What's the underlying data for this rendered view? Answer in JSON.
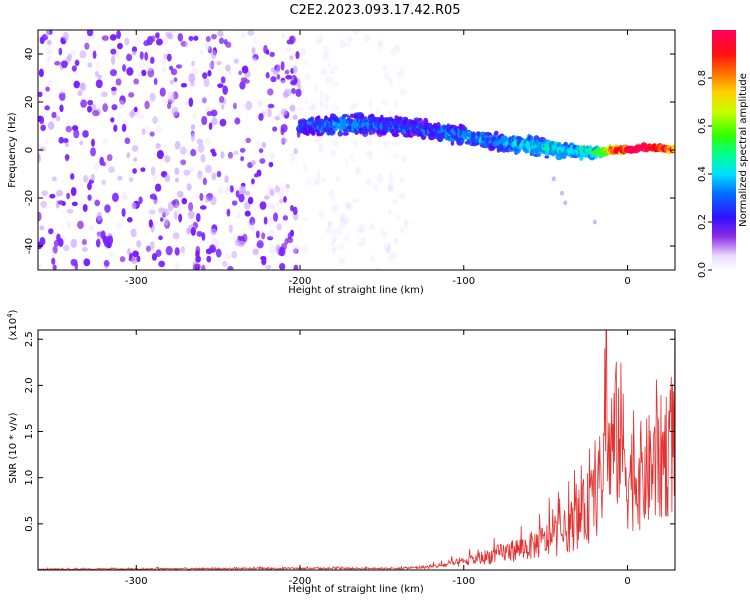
{
  "title": "C2E2.2023.093.17.42.R05",
  "colors": {
    "spectral_scatter": "#7a1fff",
    "snr_line": "#e53030",
    "colormap": [
      "#ffffff",
      "#efe0ff",
      "#c9a3ff",
      "#8a2be2",
      "#5a00ff",
      "#2a30ff",
      "#0090ff",
      "#00e0ff",
      "#00ff80",
      "#40ff00",
      "#c8ff00",
      "#ffd000",
      "#ff6000",
      "#ff0000",
      "#ff0055"
    ]
  },
  "chart_data": [
    {
      "type": "heatmap",
      "name": "spectrogram",
      "xlabel": "Height of straight line (km)",
      "ylabel": "Frequency (Hz)",
      "xlim": [
        -360,
        29
      ],
      "ylim": [
        -50,
        50
      ],
      "xticks": [
        -300,
        -200,
        -100,
        0
      ],
      "yticks": [
        -40,
        -20,
        0,
        20,
        40
      ],
      "x_tick_labels": [
        "-300",
        "-200",
        "-100",
        "0"
      ],
      "y_tick_labels": [
        "-40",
        "-20",
        "0",
        "20",
        "40"
      ],
      "colorbar": {
        "label": "Normalized spectral amplitude",
        "range": [
          0.0,
          1.0
        ],
        "ticks": [
          0.0,
          0.2,
          0.4,
          0.6,
          0.8
        ],
        "tick_labels": [
          "0.0",
          "0.2",
          "0.4",
          "0.6",
          "0.8"
        ]
      },
      "ridge": {
        "x": [
          -200,
          -170,
          -140,
          -120,
          -100,
          -80,
          -60,
          -40,
          -20,
          -10,
          0,
          10,
          20,
          29
        ],
        "frequency": [
          10,
          11,
          10,
          8,
          6,
          3,
          2,
          0,
          -1,
          0,
          0,
          1,
          1,
          0
        ],
        "width_hz": [
          8,
          9,
          9,
          8,
          8,
          8,
          8,
          7,
          5,
          3,
          2,
          2,
          2,
          2
        ],
        "amplitude": [
          0.3,
          0.35,
          0.3,
          0.3,
          0.35,
          0.35,
          0.4,
          0.4,
          0.45,
          0.7,
          0.9,
          0.9,
          0.8,
          0.75
        ]
      },
      "noise_regions": [
        {
          "x_range": [
            -360,
            -200
          ],
          "amplitude": 0.22,
          "note": "dense broadband noise"
        },
        {
          "x_range": [
            -200,
            -135
          ],
          "amplitude": 0.06,
          "note": "sparse faint noise"
        }
      ]
    },
    {
      "type": "line",
      "name": "snr",
      "xlabel": "Height of straight line (km)",
      "ylabel": "SNR (10 * v/v)",
      "ylabel_multiplier": "(x10",
      "ylabel_multiplier_exp": "4",
      "ylabel_multiplier_close": ")",
      "xlim": [
        -360,
        29
      ],
      "ylim": [
        0,
        2.6
      ],
      "xticks": [
        -300,
        -200,
        -100,
        0
      ],
      "yticks": [
        0.5,
        1.0,
        1.5,
        2.0,
        2.5
      ],
      "x_tick_labels": [
        "-300",
        "-200",
        "-100",
        "0"
      ],
      "y_tick_labels": [
        "0.5",
        "1.0",
        "1.5",
        "2.0",
        "2.5"
      ],
      "envelope": {
        "x": [
          -360,
          -200,
          -140,
          -120,
          -100,
          -80,
          -60,
          -40,
          -30,
          -20,
          -12,
          -5,
          0,
          10,
          20,
          29
        ],
        "snr": [
          0.01,
          0.02,
          0.02,
          0.04,
          0.1,
          0.2,
          0.3,
          0.45,
          0.65,
          0.9,
          1.4,
          1.8,
          1.2,
          1.2,
          1.4,
          1.7
        ]
      },
      "peak": {
        "x": -13,
        "snr": 2.6
      }
    }
  ]
}
